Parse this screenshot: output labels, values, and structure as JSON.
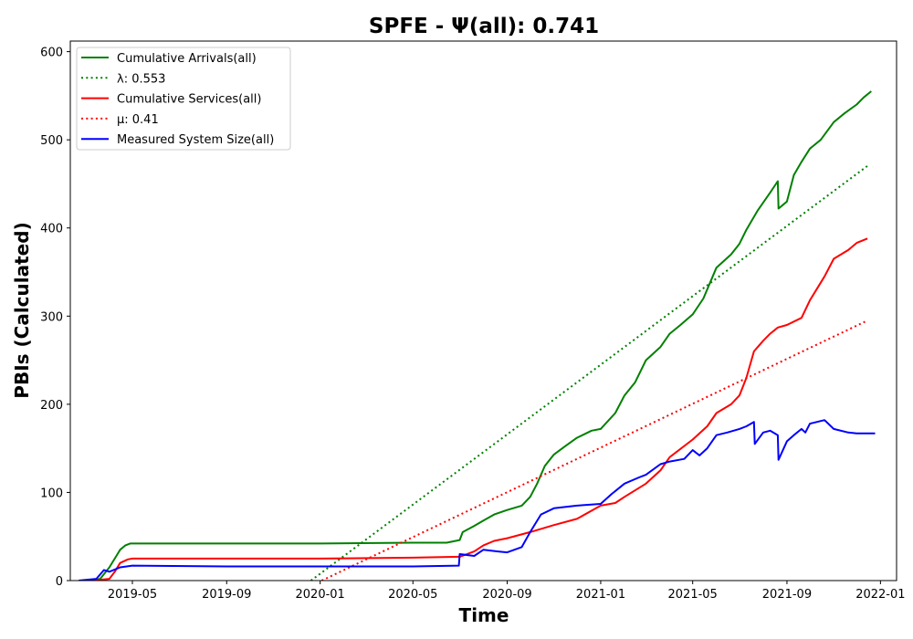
{
  "chart_data": {
    "type": "line",
    "title": "SPFE -  Ψ(all): 0.741",
    "xlabel": "Time",
    "ylabel": "PBIs (Calculated)",
    "xlim": [
      "2019-02-09",
      "2022-01-22"
    ],
    "ylim": [
      0,
      612
    ],
    "x_ticks": [
      "2019-05",
      "2019-09",
      "2020-01",
      "2020-05",
      "2020-09",
      "2021-01",
      "2021-05",
      "2021-09",
      "2022-01"
    ],
    "y_ticks": [
      0,
      100,
      200,
      300,
      400,
      500,
      600
    ],
    "grid": false,
    "legend_position": "top-left",
    "legend": [
      {
        "label": "Cumulative Arrivals(all)",
        "color": "#008000",
        "style": "solid"
      },
      {
        "label": "λ: 0.553",
        "color": "#008000",
        "style": "dotted"
      },
      {
        "label": "Cumulative Services(all)",
        "color": "#ff0000",
        "style": "solid"
      },
      {
        "label": "μ: 0.41",
        "color": "#ff0000",
        "style": "dotted"
      },
      {
        "label": "Measured System Size(all)",
        "color": "#0000ff",
        "style": "solid"
      }
    ],
    "series": [
      {
        "name": "Cumulative Arrivals(all)",
        "color": "#008000",
        "style": "solid",
        "x": [
          "2019-03-10",
          "2019-03-20",
          "2019-04-01",
          "2019-04-08",
          "2019-04-15",
          "2019-04-22",
          "2019-04-28",
          "2019-05-05",
          "2019-09-01",
          "2020-01-01",
          "2020-05-01",
          "2020-06-14",
          "2020-07-01",
          "2020-07-05",
          "2020-07-20",
          "2020-08-01",
          "2020-08-15",
          "2020-09-01",
          "2020-09-20",
          "2020-10-01",
          "2020-10-10",
          "2020-10-20",
          "2020-11-01",
          "2020-11-15",
          "2020-12-01",
          "2020-12-20",
          "2021-01-01",
          "2021-01-20",
          "2021-02-01",
          "2021-02-15",
          "2021-03-01",
          "2021-03-20",
          "2021-04-01",
          "2021-04-15",
          "2021-05-01",
          "2021-05-15",
          "2021-06-01",
          "2021-06-20",
          "2021-07-01",
          "2021-07-10",
          "2021-07-25",
          "2021-08-10",
          "2021-08-20",
          "2021-08-21",
          "2021-09-01",
          "2021-09-10",
          "2021-09-20",
          "2021-10-01",
          "2021-10-15",
          "2021-11-01",
          "2021-11-15",
          "2021-12-01",
          "2021-12-10",
          "2021-12-20"
        ],
        "y": [
          0,
          2,
          15,
          25,
          35,
          40,
          42,
          42,
          42,
          42,
          43,
          43,
          46,
          55,
          62,
          68,
          75,
          80,
          85,
          95,
          110,
          130,
          143,
          152,
          162,
          170,
          172,
          190,
          210,
          225,
          250,
          265,
          280,
          290,
          302,
          320,
          355,
          370,
          382,
          398,
          420,
          440,
          453,
          422,
          430,
          460,
          475,
          490,
          500,
          520,
          530,
          540,
          548,
          555
        ]
      },
      {
        "name": "λ: 0.553",
        "color": "#008000",
        "style": "dotted",
        "x": [
          "2019-12-20",
          "2021-12-16"
        ],
        "y": [
          0,
          471
        ]
      },
      {
        "name": "Cumulative Services(all)",
        "color": "#ff0000",
        "style": "solid",
        "x": [
          "2019-03-10",
          "2019-04-01",
          "2019-04-08",
          "2019-04-15",
          "2019-04-25",
          "2019-05-01",
          "2019-09-01",
          "2020-01-01",
          "2020-05-01",
          "2020-07-01",
          "2020-07-20",
          "2020-08-01",
          "2020-08-15",
          "2020-09-01",
          "2020-10-01",
          "2020-11-01",
          "2020-12-01",
          "2021-01-01",
          "2021-01-20",
          "2021-02-01",
          "2021-03-01",
          "2021-03-20",
          "2021-04-01",
          "2021-05-01",
          "2021-05-20",
          "2021-06-01",
          "2021-06-20",
          "2021-07-01",
          "2021-07-10",
          "2021-07-20",
          "2021-08-01",
          "2021-08-10",
          "2021-08-20",
          "2021-09-01",
          "2021-09-20",
          "2021-10-01",
          "2021-10-20",
          "2021-11-01",
          "2021-11-20",
          "2021-12-01",
          "2021-12-15"
        ],
        "y": [
          0,
          2,
          10,
          20,
          24,
          25,
          25,
          25,
          26,
          27,
          33,
          40,
          45,
          48,
          55,
          63,
          70,
          85,
          88,
          95,
          110,
          125,
          140,
          160,
          175,
          190,
          200,
          210,
          230,
          260,
          272,
          280,
          287,
          290,
          298,
          318,
          345,
          365,
          375,
          383,
          388
        ]
      },
      {
        "name": "μ: 0.41",
        "color": "#ff0000",
        "style": "dotted",
        "x": [
          "2020-01-03",
          "2021-12-15"
        ],
        "y": [
          0,
          295
        ]
      },
      {
        "name": "Measured System Size(all)",
        "color": "#0000ff",
        "style": "solid",
        "x": [
          "2019-02-20",
          "2019-03-15",
          "2019-03-25",
          "2019-04-01",
          "2019-04-15",
          "2019-05-01",
          "2019-09-01",
          "2020-01-01",
          "2020-05-01",
          "2020-06-30",
          "2020-07-01",
          "2020-07-20",
          "2020-08-01",
          "2020-08-20",
          "2020-09-01",
          "2020-09-20",
          "2020-10-01",
          "2020-10-15",
          "2020-11-01",
          "2020-12-01",
          "2021-01-01",
          "2021-01-15",
          "2021-02-01",
          "2021-02-20",
          "2021-03-01",
          "2021-03-20",
          "2021-04-01",
          "2021-04-20",
          "2021-05-01",
          "2021-05-10",
          "2021-05-20",
          "2021-06-01",
          "2021-06-15",
          "2021-07-01",
          "2021-07-10",
          "2021-07-20",
          "2021-07-21",
          "2021-08-01",
          "2021-08-10",
          "2021-08-20",
          "2021-08-21",
          "2021-09-01",
          "2021-09-10",
          "2021-09-20",
          "2021-09-25",
          "2021-10-01",
          "2021-10-20",
          "2021-11-01",
          "2021-11-20",
          "2021-12-01",
          "2021-12-25"
        ],
        "y": [
          0,
          2,
          12,
          10,
          15,
          17,
          16,
          16,
          16,
          17,
          30,
          28,
          35,
          33,
          32,
          38,
          55,
          75,
          82,
          85,
          87,
          98,
          110,
          117,
          120,
          132,
          135,
          138,
          148,
          142,
          150,
          165,
          168,
          172,
          175,
          180,
          155,
          168,
          170,
          165,
          137,
          158,
          165,
          172,
          168,
          178,
          182,
          172,
          168,
          167,
          167
        ]
      }
    ]
  }
}
